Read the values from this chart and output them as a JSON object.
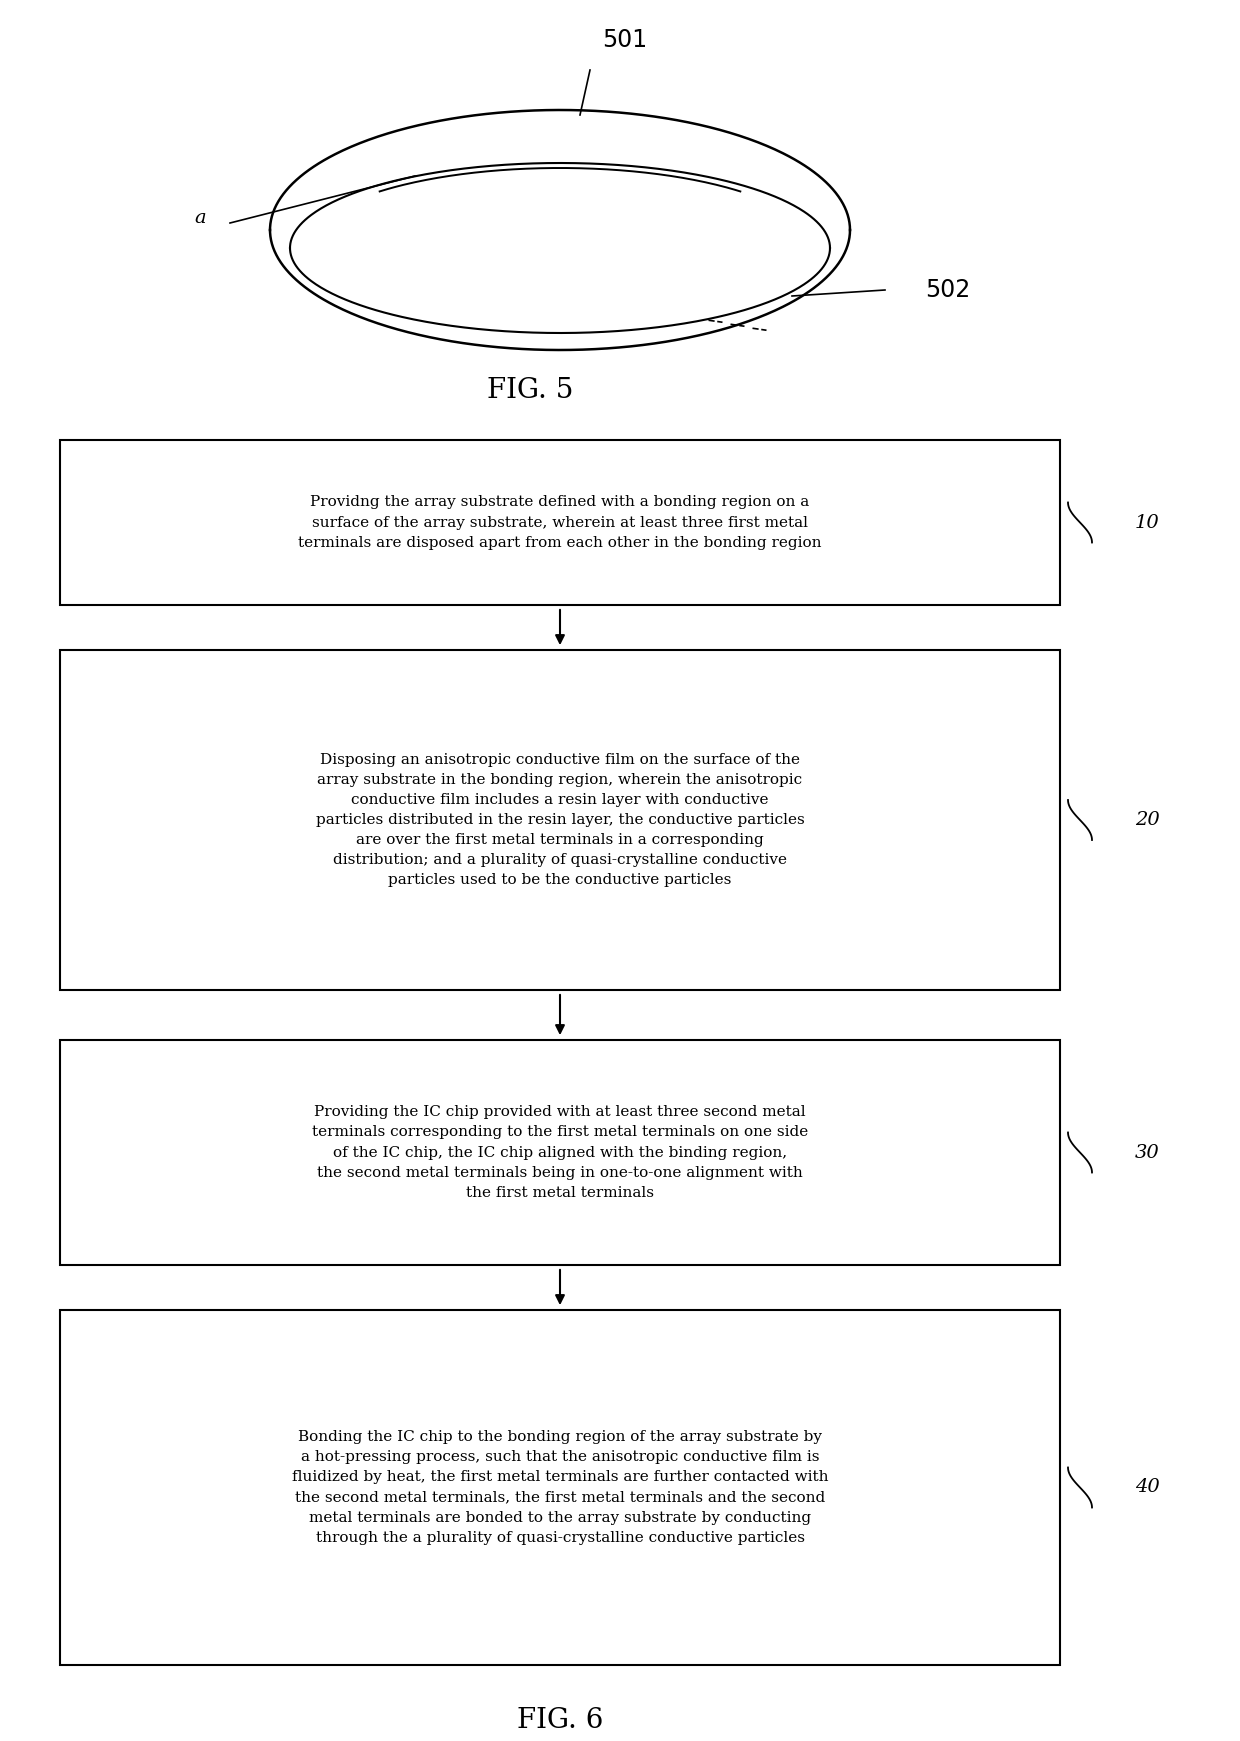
{
  "fig5_label": "FIG. 5",
  "fig6_label": "FIG. 6",
  "label_501": "501",
  "label_502": "502",
  "label_a": "a",
  "steps": [
    {
      "id": "10",
      "text": "Providng the array substrate defined with a bonding region on a\nsurface of the array substrate, wherein at least three first metal\nterminals are disposed apart from each other in the bonding region"
    },
    {
      "id": "20",
      "text": "Disposing an anisotropic conductive film on the surface of the\narray substrate in the bonding region, wherein the anisotropic\nconductive film includes a resin layer with conductive\nparticles distributed in the resin layer, the conductive particles\nare over the first metal terminals in a corresponding\ndistribution; and a plurality of quasi-crystalline conductive\nparticles used to be the conductive particles"
    },
    {
      "id": "30",
      "text": "Providing the IC chip provided with at least three second metal\nterminals corresponding to the first metal terminals on one side\nof the IC chip, the IC chip aligned with the binding region,\nthe second metal terminals being in one-to-one alignment with\nthe first metal terminals"
    },
    {
      "id": "40",
      "text": "Bonding the IC chip to the bonding region of the array substrate by\na hot-pressing process, such that the anisotropic conductive film is\nfluidized by heat, the first metal terminals are further contacted with\nthe second metal terminals, the first metal terminals and the second\nmetal terminals are bonded to the array substrate by conducting\nthrough the a plurality of quasi-crystalline conductive particles"
    }
  ],
  "bg_color": "#ffffff",
  "box_edge_color": "#000000",
  "text_color": "#000000",
  "arrow_color": "#000000",
  "font_size_step": 11.0,
  "font_size_fig": 20,
  "font_size_label": 13
}
